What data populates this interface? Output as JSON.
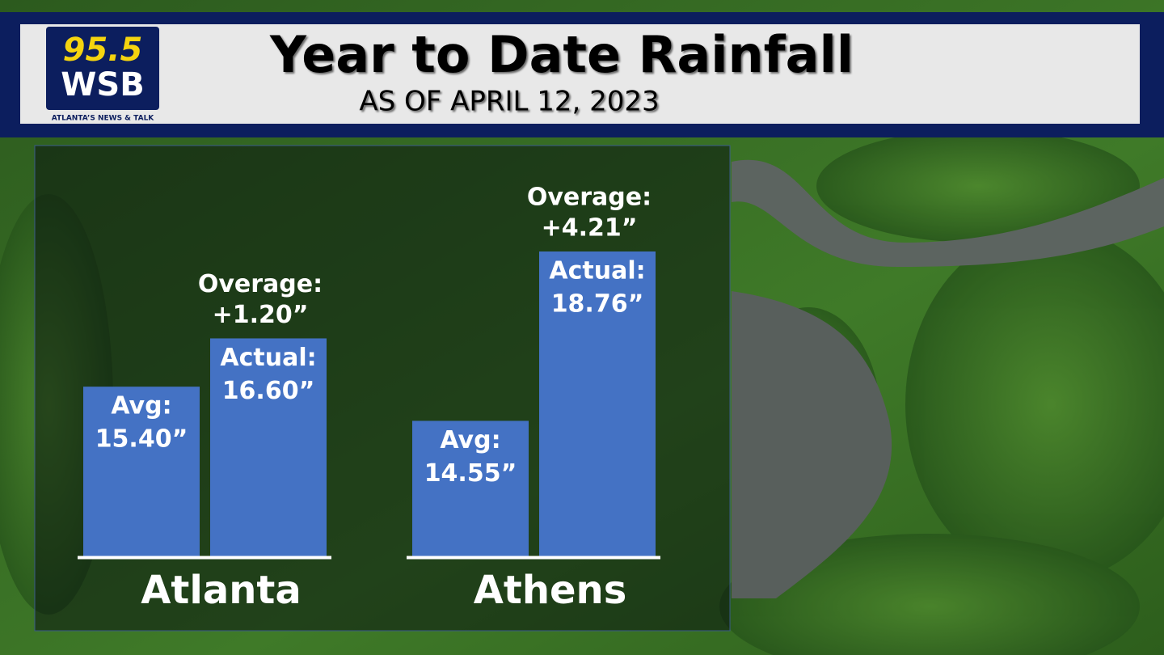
{
  "logo": {
    "frequency": "95.5",
    "station": "WSB",
    "tagline": "ATLANTA’S NEWS & TALK"
  },
  "chart_data": {
    "type": "bar",
    "title": "Year to Date Rainfall",
    "subtitle": "AS OF APRIL 12, 2023",
    "categories": [
      "Atlanta",
      "Athens"
    ],
    "series": [
      {
        "name": "Avg:",
        "color": "#4472c4",
        "values": [
          15.4,
          14.55
        ],
        "value_labels": [
          "15.40”",
          "14.55”"
        ]
      },
      {
        "name": "Actual:",
        "color": "#4472c4",
        "values": [
          16.6,
          18.76
        ],
        "value_labels": [
          "16.60”",
          "18.76”"
        ]
      }
    ],
    "overage": {
      "name": "Overage:",
      "values": [
        1.2,
        4.21
      ],
      "value_labels": [
        "+1.20”",
        "+4.21”"
      ]
    }
  }
}
